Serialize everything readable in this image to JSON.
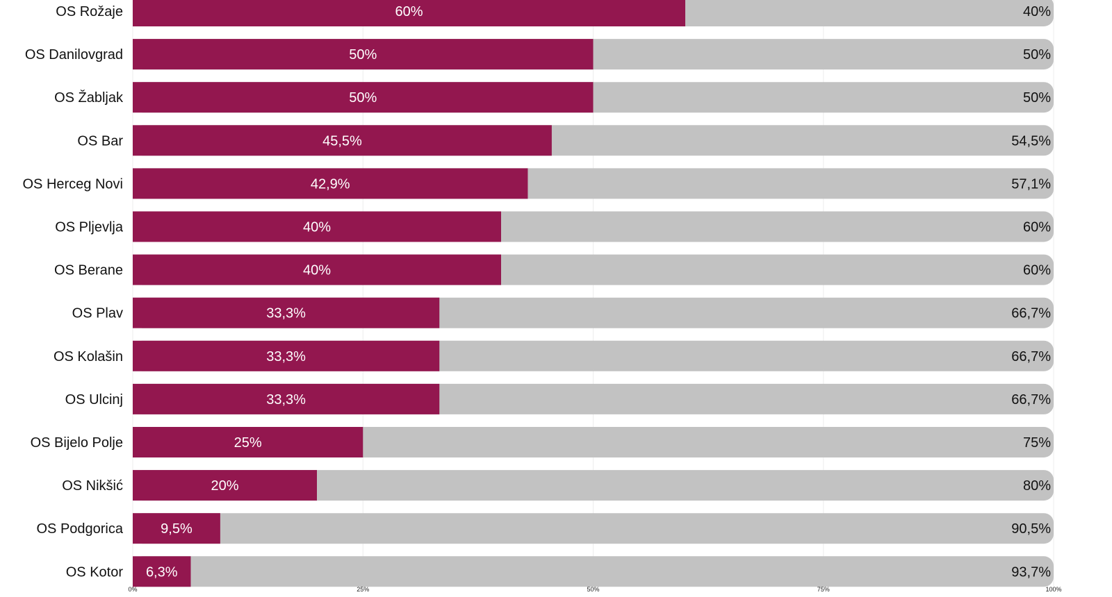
{
  "chart_data": {
    "type": "bar",
    "orientation": "horizontal",
    "stacked": true,
    "normalized": true,
    "categories": [
      "OS Rožaje",
      "OS Danilovgrad",
      "OS Žabljak",
      "OS Bar",
      "OS Herceg Novi",
      "OS Pljevlja",
      "OS Berane",
      "OS Plav",
      "OS Kolašin",
      "OS Ulcinj",
      "OS Bijelo Polje",
      "OS Nikšić",
      "OS Podgorica",
      "OS Kotor"
    ],
    "series": [
      {
        "color": "#93174f",
        "values": [
          60,
          50,
          50,
          45.5,
          42.9,
          40,
          40,
          33.3,
          33.3,
          33.3,
          25,
          20,
          9.5,
          6.3
        ],
        "labels": [
          "60%",
          "50%",
          "50%",
          "45,5%",
          "42,9%",
          "40%",
          "40%",
          "33,3%",
          "33,3%",
          "33,3%",
          "25%",
          "20%",
          "9,5%",
          "6,3%"
        ],
        "label_color": "#ffffff"
      },
      {
        "color": "#c2c2c2",
        "values": [
          40,
          50,
          50,
          54.5,
          57.1,
          60,
          60,
          66.7,
          66.7,
          66.7,
          75,
          80,
          90.5,
          93.7
        ],
        "labels": [
          "40%",
          "50%",
          "50%",
          "54,5%",
          "57,1%",
          "60%",
          "60%",
          "66,7%",
          "66,7%",
          "66,7%",
          "75%",
          "80%",
          "90,5%",
          "93,7%"
        ],
        "label_color": "#111111"
      }
    ],
    "xlim": [
      0,
      100
    ],
    "x_ticks": [
      0,
      25,
      50,
      75,
      100
    ],
    "x_tick_labels": [
      "0%",
      "25%",
      "50%",
      "75%",
      "100%"
    ],
    "grid": "vertical",
    "title": "",
    "xlabel": "",
    "ylabel": ""
  }
}
